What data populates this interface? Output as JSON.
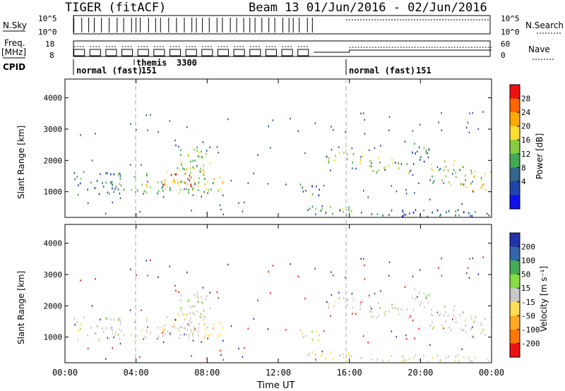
{
  "header": {
    "title": "TIGER (fitACF)",
    "beam_range": "Beam 13  01/Jun/2016 - 02/Jun/2016"
  },
  "top_panels": {
    "nsky_label": "N.Sky",
    "nsky_ticks": [
      "10^5",
      "10^0"
    ],
    "nsearch_label": "N.Search",
    "nsearch_ticks": [
      "10^5",
      "10^0"
    ],
    "freq_label_1": "Freq.",
    "freq_label_2": "[MHz]",
    "freq_ticks": [
      "18",
      "8"
    ],
    "nave_label": "Nave",
    "nave_ticks": [
      "60",
      "0"
    ],
    "cpid_label": "CPID",
    "cpid_blocks": [
      {
        "name": "normal (fast)",
        "id": "151",
        "start_hour": 0.5
      },
      {
        "name": "themis",
        "id": "3300",
        "start_hour": 4.0
      },
      {
        "name": "normal (fast)",
        "id": "151",
        "start_hour": 16.0
      }
    ]
  },
  "panels": {
    "power_ylabel": "Slant Range [km]",
    "velocity_ylabel": "Slant Range [km]",
    "xlabel": "Time UT",
    "x_ticks": [
      "00:00",
      "04:00",
      "08:00",
      "12:00",
      "16:00",
      "20:00",
      "00:00"
    ]
  },
  "colorbars": {
    "power": {
      "label": "Power [dB]",
      "ticks": [
        "28",
        "24",
        "20",
        "16",
        "12",
        "8",
        "4"
      ],
      "colors": [
        "#ee1111",
        "#ff6600",
        "#ffaa00",
        "#ffdd33",
        "#88cc44",
        "#44aa55",
        "#336688",
        "#2244aa",
        "#1111ee"
      ]
    },
    "velocity": {
      "label": "Velocity [m s⁻¹]",
      "ticks": [
        "200",
        "100",
        "50",
        "15",
        "-15",
        "-50",
        "-100",
        "-200"
      ],
      "colors": [
        "#2233aa",
        "#3366aa",
        "#44aa55",
        "#88dd44",
        "#c8c8c8",
        "#ffdd55",
        "#ffaa22",
        "#ff7700",
        "#ee1111"
      ]
    }
  },
  "chart_data": {
    "type": "heatmap",
    "title": "TIGER (fitACF)",
    "xlabel": "Time UT",
    "ylabel": "Slant Range [km]",
    "xlim": [
      0,
      24
    ],
    "ylim": [
      180,
      4600
    ],
    "y_ticks": [
      1000,
      2000,
      3000,
      4000
    ],
    "echo_regions": [
      {
        "t0": 0.5,
        "t1": 3.3,
        "r0": 900,
        "r1": 1650,
        "power": 12,
        "velocity": 0
      },
      {
        "t0": 3.7,
        "t1": 8.0,
        "r0": 950,
        "r1": 1800,
        "power": 16,
        "velocity": -10
      },
      {
        "t0": 5.5,
        "t1": 7.3,
        "r0": 1150,
        "r1": 1600,
        "power": 24,
        "velocity": -20
      },
      {
        "t0": 6.3,
        "t1": 8.2,
        "r0": 1700,
        "r1": 2450,
        "power": 14,
        "velocity": 10
      },
      {
        "t0": 7.8,
        "t1": 9.0,
        "r0": 900,
        "r1": 1500,
        "power": 18,
        "velocity": -30
      },
      {
        "t0": 13.2,
        "t1": 14.3,
        "r0": 850,
        "r1": 1300,
        "power": 8,
        "velocity": 0
      },
      {
        "t0": 14.5,
        "t1": 17.0,
        "r0": 1900,
        "r1": 2250,
        "power": 16,
        "velocity": 0
      },
      {
        "t0": 17.0,
        "t1": 19.5,
        "r0": 1600,
        "r1": 2100,
        "power": 16,
        "velocity": 0
      },
      {
        "t0": 19.5,
        "t1": 20.5,
        "r0": 1800,
        "r1": 2600,
        "power": 12,
        "velocity": 5
      },
      {
        "t0": 20.5,
        "t1": 22.5,
        "r0": 1200,
        "r1": 2000,
        "power": 14,
        "velocity": 0
      },
      {
        "t0": 22.5,
        "t1": 24.0,
        "r0": 1000,
        "r1": 1700,
        "power": 18,
        "velocity": -5
      },
      {
        "t0": 13.5,
        "t1": 16.0,
        "r0": 300,
        "r1": 600,
        "power": 14,
        "velocity": -20
      },
      {
        "t0": 14.0,
        "t1": 24.0,
        "r0": 200,
        "r1": 420,
        "power": 10,
        "velocity": -15
      }
    ]
  }
}
